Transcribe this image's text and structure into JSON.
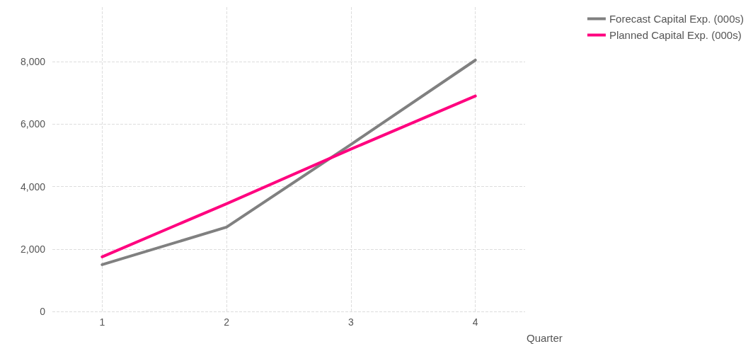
{
  "chart_data": {
    "type": "line",
    "xlabel": "Quarter",
    "x": [
      1,
      2,
      3,
      4
    ],
    "xlim": [
      0.6,
      4.4
    ],
    "xticks": [
      1,
      2,
      3,
      4
    ],
    "ylim": [
      0,
      9750
    ],
    "yticks": [
      0,
      {
        "value": 2000,
        "label": "2,000"
      },
      {
        "value": 4000,
        "label": "4,000"
      },
      {
        "value": 6000,
        "label": "6,000"
      },
      {
        "value": 8000,
        "label": "8,000"
      }
    ],
    "grid": true,
    "legend": "top right",
    "marker": "none",
    "line_style": "solid",
    "series": [
      {
        "name": "Forecast Capital Exp. (000s)",
        "color": "#808080",
        "values": [
          1500,
          2700,
          5350,
          8050
        ]
      },
      {
        "name": "Planned Capital Exp. (000s)",
        "color": "#ff007f",
        "values": [
          1750,
          3450,
          5200,
          6900
        ]
      }
    ]
  }
}
